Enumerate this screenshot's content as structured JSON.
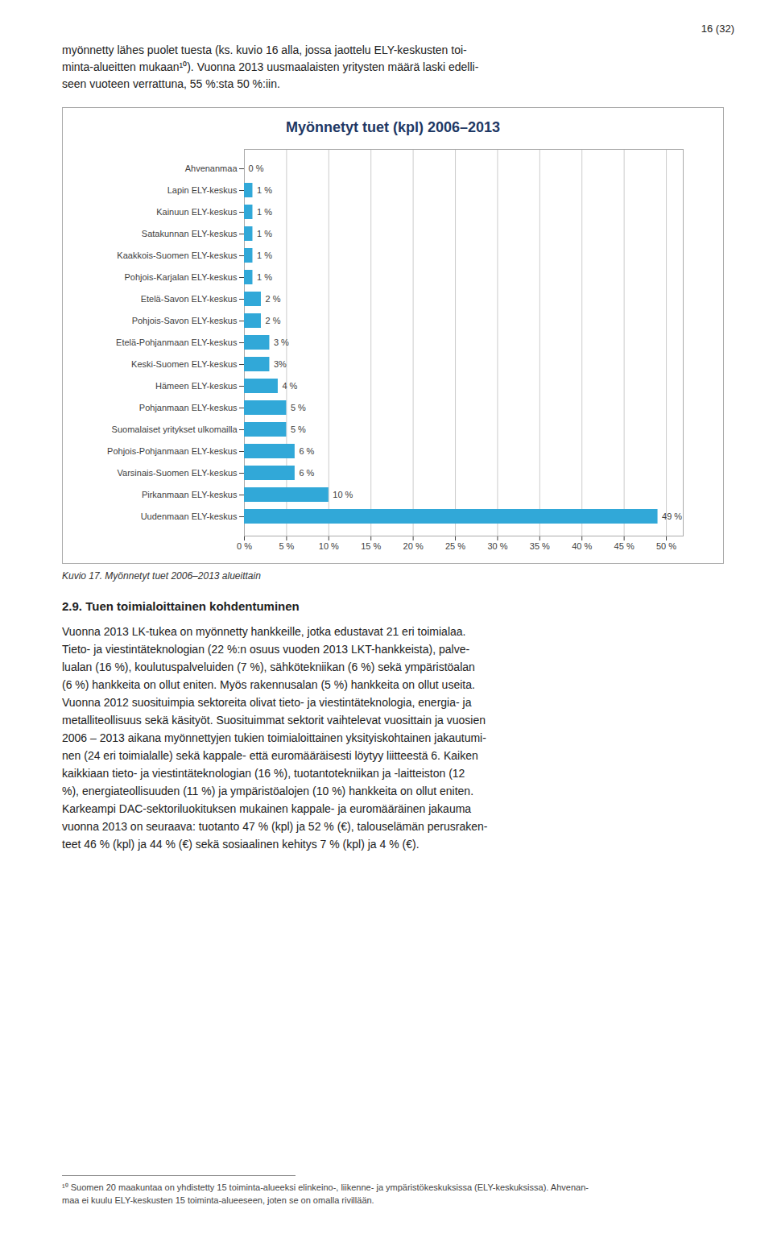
{
  "page_number": "16 (32)",
  "text_before": [
    "myönnetty lähes puolet tuesta (ks. kuvio 16 alla, jossa jaottelu ELY-keskusten toi-",
    "minta-alueitten mukaan¹⁰). Vuonna 2013 uusmaalaisten yritysten määrä laski edelli-",
    "seen vuoteen verrattuna, 55 %:sta 50 %:iin."
  ],
  "chart_data": {
    "type": "bar",
    "title": "Myönnetyt tuet (kpl)  2006–2013",
    "orientation": "horizontal",
    "categories": [
      "Ahvenanmaa",
      "Lapin ELY-keskus",
      "Kainuun ELY-keskus",
      "Satakunnan ELY-keskus",
      "Kaakkois-Suomen ELY-keskus",
      "Pohjois-Karjalan ELY-keskus",
      "Etelä-Savon ELY-keskus",
      "Pohjois-Savon ELY-keskus",
      "Etelä-Pohjanmaan ELY-keskus",
      "Keski-Suomen ELY-keskus",
      "Hämeen ELY-keskus",
      "Pohjanmaan ELY-keskus",
      "Suomalaiset yritykset ulkomailla",
      "Pohjois-Pohjanmaan ELY-keskus",
      "Varsinais-Suomen ELY-keskus",
      "Pirkanmaan ELY-keskus",
      "Uudenmaan ELY-keskus"
    ],
    "values": [
      0,
      1,
      1,
      1,
      1,
      1,
      2,
      2,
      3,
      3,
      4,
      5,
      5,
      6,
      6,
      10,
      49
    ],
    "value_labels": [
      "0 %",
      "1 %",
      "1 %",
      "1 %",
      "1 %",
      "1 %",
      "2 %",
      "2 %",
      "3 %",
      "3%",
      "4 %",
      "5 %",
      "5 %",
      "6 %",
      "6 %",
      "10 %",
      "49 %"
    ],
    "data_labels": true,
    "color": "#31A8D8",
    "xlim": [
      0,
      52
    ],
    "xticks": [
      {
        "value": 0,
        "label": "0 %"
      },
      {
        "value": 5,
        "label": "5 %"
      },
      {
        "value": 10,
        "label": "10 %"
      },
      {
        "value": 15,
        "label": "15 %"
      },
      {
        "value": 20,
        "label": "20 %"
      },
      {
        "value": 25,
        "label": "25 %"
      },
      {
        "value": 30,
        "label": "30 %"
      },
      {
        "value": 35,
        "label": "35 %"
      },
      {
        "value": 40,
        "label": "40 %"
      },
      {
        "value": 45,
        "label": "45 %"
      },
      {
        "value": 50,
        "label": "50 %"
      }
    ],
    "grid": true
  },
  "caption": "Kuvio 17. Myönnetyt tuet 2006–2013 alueittain",
  "section_heading": "2.9. Tuen toimialoittainen kohdentuminen",
  "body_text": "Vuonna 2013 LK-tukea on myönnetty hankkeille, jotka edustavat 21 eri toimialaa.\nTieto- ja viestintäteknologian (22 %:n osuus vuoden 2013 LKT-hankkeista), palve-\nlualan (16 %), koulutuspalveluiden (7 %), sähkötekniikan (6 %) sekä ympäristöalan\n(6 %) hankkeita on ollut eniten. Myös rakennusalan (5 %) hankkeita on ollut useita.\nVuonna 2012 suosituimpia sektoreita olivat tieto- ja viestintäteknologia, energia- ja\nmetalliteollisuus sekä käsityöt. Suosituimmat sektorit vaihtelevat vuosittain ja vuosien\n2006 – 2013 aikana myönnettyjen tukien toimialoittainen yksityiskohtainen jakautumi-\nnen (24 eri toimialalle) sekä kappale- että euromääräisesti löytyy liitteestä 6. Kaiken\nkaikkiaan tieto- ja viestintäteknologian (16 %), tuotantotekniikan ja -laitteiston (12\n%), energiateollisuuden (11 %) ja ympäristöalojen (10 %) hankkeita on ollut eniten.\nKarkeampi DAC-sektoriluokituksen mukainen kappale- ja euromääräinen jakauma\nvuonna 2013 on seuraava: tuotanto 47 % (kpl) ja 52 % (€), talouselämän perusraken-\nteet 46 % (kpl) ja 44 % (€) sekä sosiaalinen kehitys 7 % (kpl) ja 4 % (€).",
  "footnotes": [
    "¹⁰ Suomen 20 maakuntaa on yhdistetty 15 toiminta-alueeksi elinkeino-, liikenne- ja ympäristökeskuksissa (ELY-keskuksissa). Ahvenan-",
    "maa ei kuulu ELY-keskusten 15 toiminta-alueeseen, joten se on omalla rivillään."
  ]
}
